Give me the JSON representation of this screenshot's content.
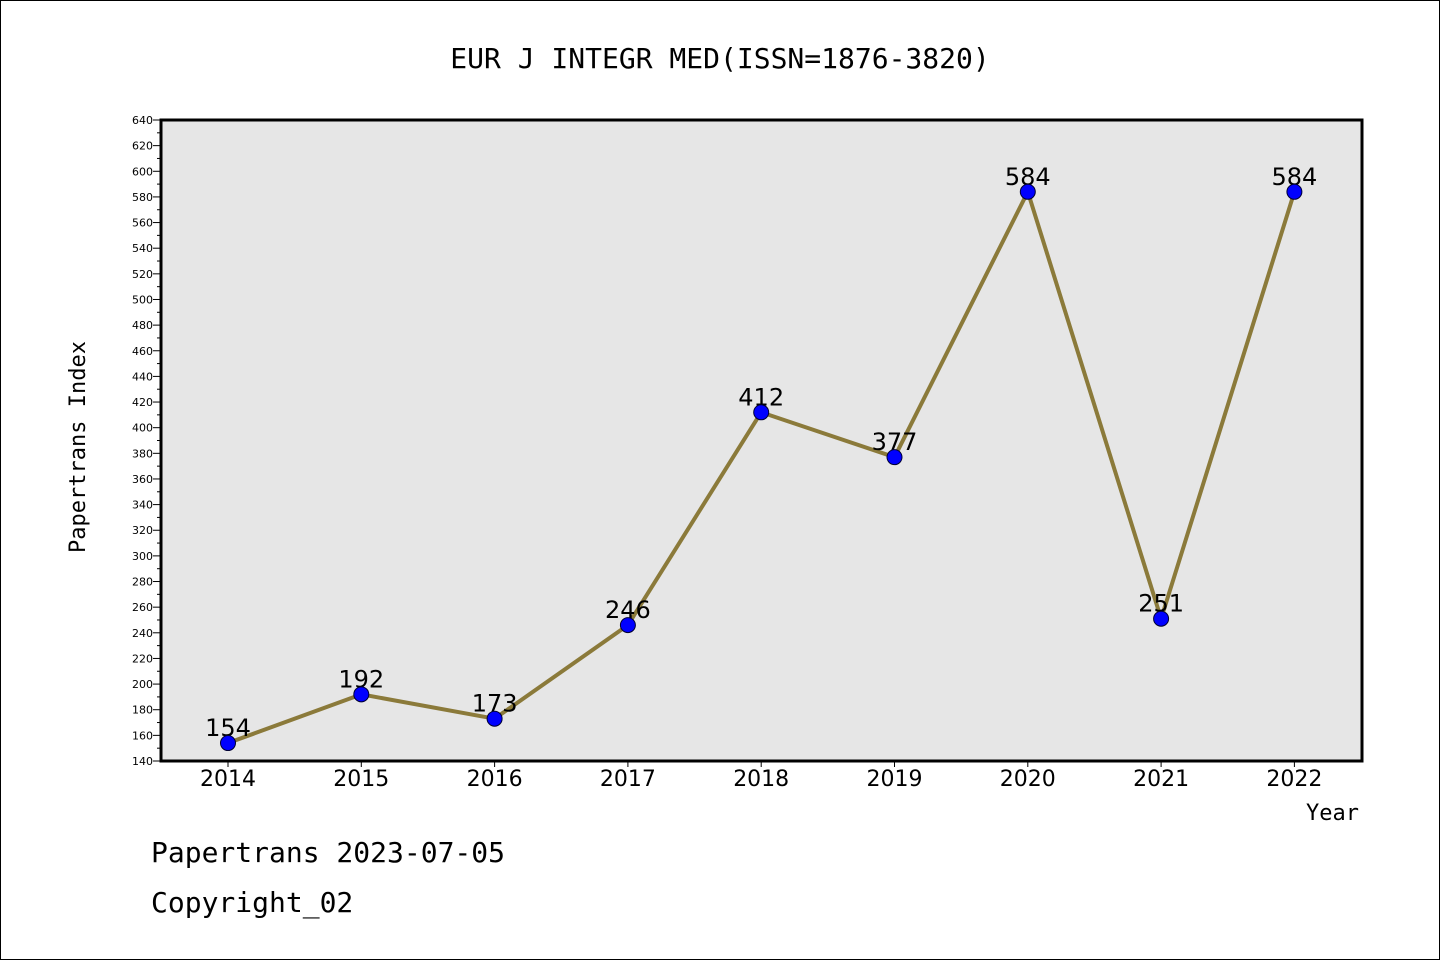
{
  "chart_data": {
    "type": "line",
    "title": "EUR J INTEGR MED(ISSN=1876-3820)",
    "xlabel": "Year",
    "ylabel": "Papertrans Index",
    "categories": [
      "2014",
      "2015",
      "2016",
      "2017",
      "2018",
      "2019",
      "2020",
      "2021",
      "2022"
    ],
    "series": [
      {
        "values": [
          154,
          192,
          173,
          246,
          412,
          377,
          584,
          251,
          584
        ]
      }
    ],
    "data_labels": [
      "154",
      "192",
      "173",
      "246",
      "412",
      "377",
      "584",
      "251",
      "584"
    ],
    "ylim": [
      140,
      640
    ],
    "yticks": [
      "140",
      "160",
      "180",
      "200",
      "220",
      "240",
      "260",
      "280",
      "300",
      "320",
      "340",
      "360",
      "380",
      "400",
      "420",
      "440",
      "460",
      "480",
      "500",
      "520",
      "540",
      "560",
      "580",
      "600",
      "620",
      "640"
    ],
    "grid": false,
    "legend": "none",
    "colors": {
      "line": "#8b7a3a",
      "marker": "#0000ff",
      "plot_background": "#e6e6e6"
    }
  },
  "footer": {
    "line1": "Papertrans 2023-07-05",
    "line2": "Copyright_02"
  }
}
